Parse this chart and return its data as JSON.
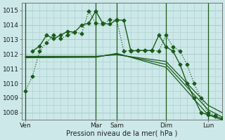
{
  "background_color": "#cce8e8",
  "grid_color": "#aacccc",
  "line_color": "#1a5c1a",
  "ylim": [
    1007.5,
    1015.5
  ],
  "xlabel": "Pression niveau de la mer( hPa )",
  "x_ticks_labels": [
    "Ven",
    "Mar",
    "Sam",
    "Dim",
    "Lun"
  ],
  "x_ticks_pos": [
    0,
    10,
    13,
    20,
    26
  ],
  "xlim": [
    -0.5,
    28
  ],
  "yticks": [
    1008,
    1009,
    1010,
    1011,
    1012,
    1013,
    1014,
    1015
  ],
  "vlines": [
    0,
    10,
    13,
    20,
    26
  ],
  "series": [
    {
      "x": [
        0,
        1,
        2,
        3,
        4,
        5,
        6,
        7,
        8,
        9,
        10,
        11,
        12,
        13,
        14,
        15,
        16,
        17,
        18,
        19,
        20,
        21,
        22,
        23,
        24,
        25,
        26,
        27
      ],
      "y": [
        1009.5,
        1010.5,
        1012.2,
        1012.8,
        1013.3,
        1013.05,
        1013.3,
        1013.5,
        1013.4,
        1014.95,
        1014.1,
        1014.05,
        1014.35,
        1014.3,
        1012.2,
        1012.25,
        1012.25,
        1012.25,
        1012.25,
        1012.2,
        1013.3,
        1012.5,
        1012.2,
        1011.3,
        1010.0,
        1009.0,
        1008.0,
        1007.8
      ],
      "linestyle": "dotted",
      "marker": "D",
      "markersize": 2.5,
      "linewidth": 0.9,
      "zorder": 5
    },
    {
      "x": [
        0,
        10,
        13,
        20,
        26,
        28
      ],
      "y": [
        1011.85,
        1011.85,
        1011.95,
        1011.5,
        1008.5,
        1008.0
      ],
      "linestyle": "solid",
      "marker": null,
      "markersize": 0,
      "linewidth": 0.9,
      "zorder": 3
    },
    {
      "x": [
        0,
        10,
        13,
        20,
        26,
        28
      ],
      "y": [
        1011.8,
        1011.82,
        1012.0,
        1011.3,
        1008.2,
        1007.7
      ],
      "linestyle": "solid",
      "marker": null,
      "markersize": 0,
      "linewidth": 0.9,
      "zorder": 3
    },
    {
      "x": [
        0,
        10,
        13,
        20,
        26,
        28
      ],
      "y": [
        1011.75,
        1011.78,
        1012.05,
        1011.1,
        1007.85,
        1007.5
      ],
      "linestyle": "solid",
      "marker": null,
      "markersize": 0,
      "linewidth": 0.9,
      "zorder": 3
    },
    {
      "x": [
        1,
        2,
        3,
        4,
        5,
        6,
        7,
        8,
        9,
        10,
        11,
        12,
        13,
        14,
        15,
        16,
        17,
        18,
        19,
        20,
        21,
        22,
        23,
        24,
        25,
        26,
        27,
        28
      ],
      "y": [
        1012.2,
        1012.55,
        1013.3,
        1013.05,
        1013.3,
        1013.55,
        1013.5,
        1014.0,
        1014.1,
        1014.95,
        1014.1,
        1014.05,
        1014.35,
        1014.3,
        1012.2,
        1012.25,
        1012.25,
        1012.25,
        1013.3,
        1012.5,
        1012.2,
        1011.3,
        1010.0,
        1009.0,
        1008.0,
        1007.85,
        1007.75,
        1007.6
      ],
      "linestyle": "solid",
      "marker": "D",
      "markersize": 2.5,
      "linewidth": 1.0,
      "zorder": 4
    }
  ]
}
